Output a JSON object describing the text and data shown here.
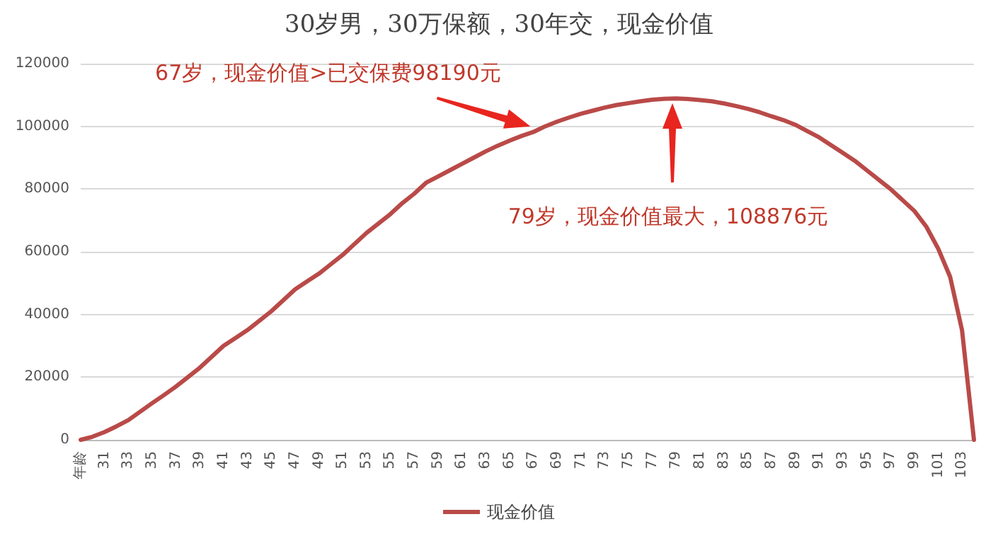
{
  "chart_data": {
    "type": "line",
    "title": "30岁男，30万保额，30年交，现金价值",
    "categories": [
      "年龄",
      null,
      "31",
      null,
      "33",
      null,
      "35",
      null,
      "37",
      null,
      "39",
      null,
      "41",
      null,
      "43",
      null,
      "45",
      null,
      "47",
      null,
      "49",
      null,
      "51",
      null,
      "53",
      null,
      "55",
      null,
      "57",
      null,
      "59",
      null,
      "61",
      null,
      "63",
      null,
      "65",
      null,
      "67",
      null,
      "69",
      null,
      "71",
      null,
      "73",
      null,
      "75",
      null,
      "77",
      null,
      "79",
      null,
      "81",
      null,
      "83",
      null,
      "85",
      null,
      "87",
      null,
      "89",
      null,
      "91",
      null,
      "93",
      null,
      "95",
      null,
      "97",
      null,
      "99",
      null,
      "101",
      null,
      "103",
      null
    ],
    "series": [
      {
        "name": "现金价值",
        "color": "#b94a48",
        "values": [
          0,
          1000,
          2500,
          4300,
          6300,
          9000,
          11700,
          14300,
          17000,
          20000,
          23000,
          26500,
          30000,
          32500,
          35000,
          38000,
          41000,
          44500,
          48000,
          50500,
          53000,
          56000,
          59000,
          62500,
          66000,
          69000,
          72000,
          75500,
          78500,
          82000,
          84000,
          86000,
          88000,
          90000,
          92000,
          93800,
          95400,
          96900,
          98190,
          100000,
          101500,
          102800,
          104000,
          105000,
          106000,
          106800,
          107400,
          108000,
          108500,
          108800,
          108876,
          108700,
          108400,
          108000,
          107300,
          106500,
          105600,
          104500,
          103200,
          102000,
          100500,
          98500,
          96500,
          94000,
          91500,
          89000,
          86000,
          83000,
          80000,
          76500,
          73000,
          68000,
          61000,
          52000,
          35000,
          0
        ]
      }
    ],
    "ylim": [
      0,
      120000
    ],
    "yticks": [
      0,
      20000,
      40000,
      60000,
      80000,
      100000,
      120000
    ],
    "grid": "y",
    "legend": "bottom",
    "marker": "none",
    "line_style": "solid",
    "annotations": [
      {
        "text": "67岁，现金价值>已交保费98190元",
        "x": "67",
        "y": 98190
      },
      "79岁，现金价值最大，108876元"
    ]
  }
}
